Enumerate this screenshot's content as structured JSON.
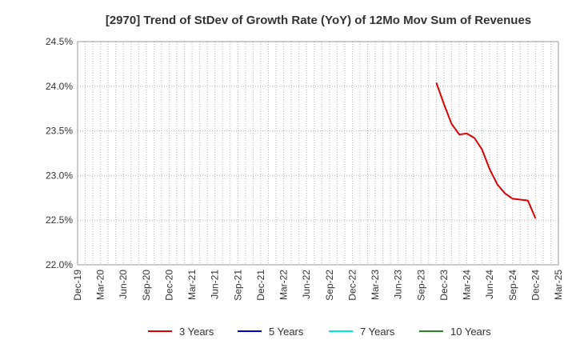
{
  "chart_data": {
    "type": "line",
    "title": "[2970]  Trend of StDev of Growth Rate (YoY) of 12Mo Mov Sum of Revenues",
    "xlabel": "",
    "ylabel": "",
    "x_ticks": [
      "Dec-19",
      "Mar-20",
      "Jun-20",
      "Sep-20",
      "Dec-20",
      "Mar-21",
      "Jun-21",
      "Sep-21",
      "Dec-21",
      "Mar-22",
      "Jun-22",
      "Sep-22",
      "Dec-22",
      "Mar-23",
      "Jun-23",
      "Sep-23",
      "Dec-23",
      "Mar-24",
      "Jun-24",
      "Sep-24",
      "Dec-24",
      "Mar-25"
    ],
    "x_range": [
      "2019-12",
      "2025-03"
    ],
    "y_ticks": [
      "22.0%",
      "22.5%",
      "23.0%",
      "23.5%",
      "24.0%",
      "24.5%"
    ],
    "ylim": [
      22.0,
      24.5
    ],
    "grid": true,
    "legend_position": "bottom",
    "series": [
      {
        "name": "3 Years",
        "color": "#dd0000",
        "x": [
          "2023-11",
          "2023-12",
          "2024-01",
          "2024-02",
          "2024-03",
          "2024-04",
          "2024-05",
          "2024-06",
          "2024-07",
          "2024-08",
          "2024-09",
          "2024-10",
          "2024-11",
          "2024-12"
        ],
        "values": [
          24.04,
          23.8,
          23.58,
          23.46,
          23.47,
          23.42,
          23.29,
          23.07,
          22.9,
          22.8,
          22.74,
          22.73,
          22.72,
          22.52
        ]
      },
      {
        "name": "5 Years",
        "color": "#0000cc",
        "x": [],
        "values": []
      },
      {
        "name": "7 Years",
        "color": "#00e5ee",
        "x": [],
        "values": []
      },
      {
        "name": "10 Years",
        "color": "#228b22",
        "x": [],
        "values": []
      }
    ]
  }
}
